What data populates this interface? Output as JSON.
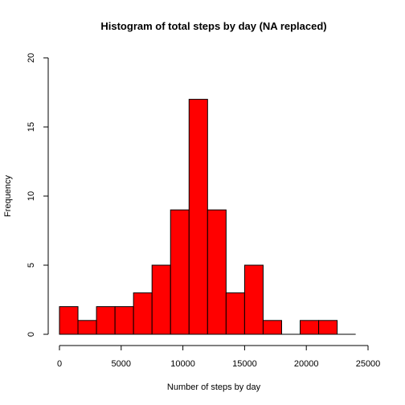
{
  "chart_data": {
    "type": "bar",
    "title": "Histogram of total steps by day (NA replaced)",
    "xlabel": "Number of steps by day",
    "ylabel": "Frequency",
    "bin_width": 1500,
    "bins": [
      {
        "start": 0,
        "end": 1500,
        "count": 2
      },
      {
        "start": 1500,
        "end": 3000,
        "count": 1
      },
      {
        "start": 3000,
        "end": 4500,
        "count": 2
      },
      {
        "start": 4500,
        "end": 6000,
        "count": 2
      },
      {
        "start": 6000,
        "end": 7500,
        "count": 3
      },
      {
        "start": 7500,
        "end": 9000,
        "count": 5
      },
      {
        "start": 9000,
        "end": 10500,
        "count": 9
      },
      {
        "start": 10500,
        "end": 12000,
        "count": 17
      },
      {
        "start": 12000,
        "end": 13500,
        "count": 9
      },
      {
        "start": 13500,
        "end": 15000,
        "count": 3
      },
      {
        "start": 15000,
        "end": 16500,
        "count": 5
      },
      {
        "start": 16500,
        "end": 18000,
        "count": 1
      },
      {
        "start": 18000,
        "end": 19500,
        "count": 0
      },
      {
        "start": 19500,
        "end": 21000,
        "count": 1
      },
      {
        "start": 21000,
        "end": 22500,
        "count": 1
      },
      {
        "start": 22500,
        "end": 24000,
        "count": 0
      }
    ],
    "xlim": [
      0,
      24000
    ],
    "x_axis_extent": [
      0,
      25000
    ],
    "ylim": [
      0,
      20
    ],
    "x_ticks": [
      0,
      5000,
      10000,
      15000,
      20000,
      25000
    ],
    "x_tick_labels": [
      "0",
      "5000",
      "10000",
      "15000",
      "20000",
      "25000"
    ],
    "y_ticks": [
      0,
      5,
      10,
      15,
      20
    ],
    "y_tick_labels": [
      "0",
      "5",
      "10",
      "15",
      "20"
    ],
    "bar_color": "#ff0000",
    "border_color": "#000000",
    "grid": false
  }
}
